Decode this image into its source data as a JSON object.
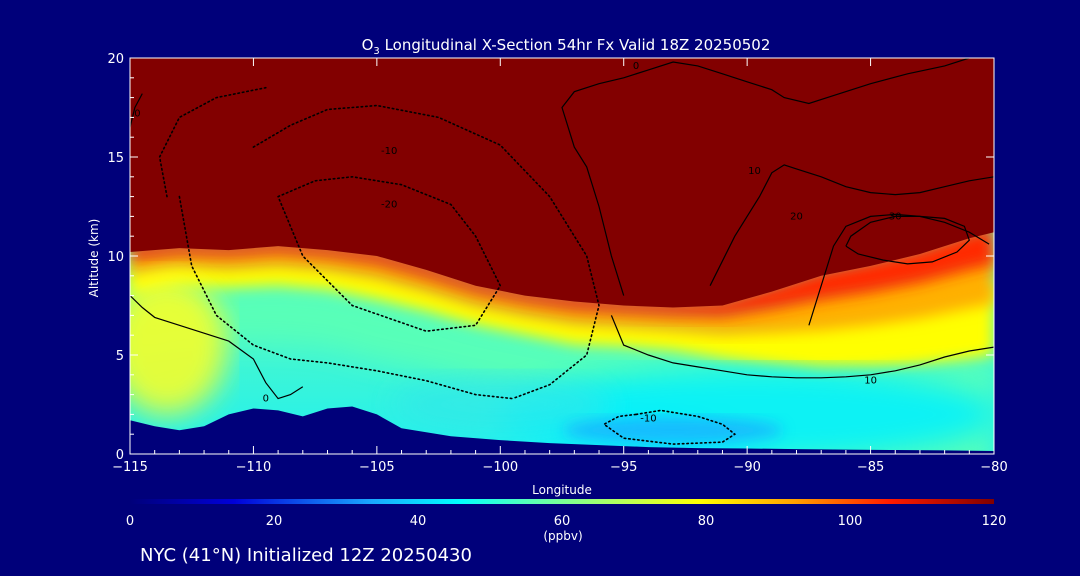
{
  "chart_data": {
    "type": "heatmap",
    "title": "O3 Longitudinal X-Section 54hr  Fx Valid 18Z 20250502",
    "title_parts": {
      "species": "O",
      "subscript": "3",
      "rest": " Longitudinal X-Section 54hr  Fx Valid 18Z 20250502"
    },
    "xlabel": "Longitude",
    "ylabel": "Altitude (km)",
    "xlim": [
      -115,
      -80
    ],
    "ylim": [
      0,
      20
    ],
    "x_ticks": [
      -115,
      -110,
      -105,
      -100,
      -95,
      -90,
      -85,
      -80
    ],
    "x_tick_labels": [
      "−115",
      "−110",
      "−105",
      "−100",
      "−95",
      "−90",
      "−85",
      "−80"
    ],
    "y_ticks": [
      0,
      5,
      10,
      15,
      20
    ],
    "y_tick_labels": [
      "0",
      "5",
      "10",
      "15",
      "20"
    ],
    "colorbar": {
      "label": "(ppbv)",
      "range": [
        0,
        120
      ],
      "ticks": [
        0,
        20,
        40,
        60,
        80,
        100,
        120
      ],
      "tick_labels": [
        "0",
        "20",
        "40",
        "60",
        "80",
        "100",
        "120"
      ]
    },
    "ozone_layer_base": {
      "description_units": "longitude, altitude km",
      "x": [
        -115,
        -113,
        -111,
        -109,
        -107,
        -105,
        -103,
        -101,
        -99,
        -97,
        -95,
        -93,
        -91,
        -89,
        -87,
        -85,
        -83,
        -81,
        -80
      ],
      "top": [
        10.5,
        10.7,
        10.6,
        10.8,
        10.6,
        10.3,
        9.6,
        8.8,
        8.3,
        8.0,
        7.8,
        7.7,
        7.8,
        8.5,
        9.3,
        9.8,
        10.4,
        11.2,
        11.5
      ],
      "bottom": [
        8.0,
        8.5,
        8.4,
        8.5,
        8.3,
        7.8,
        7.2,
        6.5,
        6.0,
        5.5,
        5.4,
        5.2,
        4.8,
        4.5,
        4.2,
        4.3,
        4.5,
        4.8,
        5.0
      ]
    },
    "terrain": {
      "x": [
        -115,
        -114,
        -113,
        -112,
        -111,
        -110,
        -109,
        -108,
        -107,
        -106,
        -105,
        -104,
        -102,
        -100,
        -98,
        -96,
        -94,
        -92,
        -90,
        -88,
        -86,
        -84,
        -82,
        -80
      ],
      "alt": [
        1.7,
        1.4,
        1.2,
        1.4,
        2.0,
        2.3,
        2.2,
        1.9,
        2.3,
        2.4,
        2.0,
        1.3,
        0.9,
        0.7,
        0.55,
        0.45,
        0.35,
        0.3,
        0.28,
        0.25,
        0.22,
        0.2,
        0.18,
        0.15
      ]
    },
    "contours": [
      {
        "value": "10",
        "style": "solid",
        "x": [
          -95.5,
          -95.0,
          -94.0,
          -93.0,
          -92.0,
          -91.0,
          -90.0,
          -89.0,
          -88.0,
          -87.0,
          -86.0,
          -85.0,
          -84.0,
          -83.0,
          -82.0,
          -81.0,
          -80.0
        ],
        "y": [
          7.0,
          5.5,
          5.0,
          4.6,
          4.4,
          4.2,
          4.0,
          3.9,
          3.85,
          3.85,
          3.9,
          4.0,
          4.2,
          4.5,
          4.9,
          5.2,
          5.4
        ],
        "label_at": [
          -85.0,
          3.7
        ]
      },
      {
        "value": "10",
        "style": "solid",
        "x": [
          -91.5,
          -90.5,
          -89.5,
          -89.0,
          -88.5,
          -88.0,
          -87.0,
          -86.0,
          -85.0,
          -84.0,
          -83.0,
          -82.0,
          -81.0,
          -80.0
        ],
        "y": [
          8.5,
          11.0,
          13.0,
          14.2,
          14.6,
          14.4,
          14.0,
          13.5,
          13.2,
          13.1,
          13.2,
          13.5,
          13.8,
          14.0
        ],
        "label_at": [
          -89.7,
          14.3
        ]
      },
      {
        "value": "20",
        "style": "solid",
        "x": [
          -87.5,
          -87.0,
          -86.5,
          -86.0,
          -85.0,
          -84.0,
          -83.0,
          -82.0,
          -81.0,
          -80.2
        ],
        "y": [
          6.5,
          8.5,
          10.5,
          11.5,
          12.0,
          12.1,
          12.0,
          11.7,
          11.2,
          10.6
        ],
        "label_at": [
          -88.0,
          12.0
        ]
      },
      {
        "value": "30",
        "style": "solid",
        "x": [
          -86.0,
          -85.8,
          -85.0,
          -84.0,
          -83.0,
          -82.0,
          -81.2,
          -81.0,
          -81.5,
          -82.5,
          -83.5,
          -84.5,
          -85.5,
          -86.0
        ],
        "y": [
          10.5,
          11.0,
          11.7,
          12.0,
          12.0,
          11.9,
          11.5,
          10.8,
          10.2,
          9.7,
          9.6,
          9.8,
          10.1,
          10.5
        ],
        "label_at": [
          -84.0,
          12.0
        ]
      },
      {
        "value": "0",
        "style": "solid",
        "x": [
          -95.0,
          -95.5,
          -96.0,
          -96.5,
          -97.0,
          -97.5,
          -97.0,
          -96.0,
          -95.0,
          -94.0,
          -93.0,
          -92.0,
          -91.0,
          -90.0,
          -89.0,
          -88.5,
          -87.5,
          -86.5,
          -85.0,
          -83.5,
          -82.0,
          -81.0
        ],
        "y": [
          8.0,
          10.0,
          12.5,
          14.5,
          15.5,
          17.5,
          18.3,
          18.7,
          19.0,
          19.4,
          19.8,
          19.6,
          19.2,
          18.8,
          18.4,
          18.0,
          17.7,
          18.1,
          18.7,
          19.2,
          19.6,
          20.0
        ],
        "label_at": [
          -94.5,
          19.6
        ]
      },
      {
        "value": "0",
        "style": "solid",
        "x": [
          -115.0,
          -114.5,
          -114.0,
          -113.0,
          -112.0,
          -111.0,
          -110.0,
          -109.5,
          -109.0,
          -108.5,
          -108.0
        ],
        "y": [
          8.0,
          7.4,
          6.9,
          6.5,
          6.1,
          5.7,
          4.8,
          3.6,
          2.8,
          3.0,
          3.4
        ],
        "label_at": [
          -109.5,
          2.8
        ]
      },
      {
        "value": "0",
        "style": "solid",
        "x": [
          -115.0,
          -114.8,
          -114.5
        ],
        "y": [
          16.5,
          17.5,
          18.2
        ],
        "label_at": [
          -114.7,
          17.2
        ]
      },
      {
        "value": "-10",
        "style": "dotted",
        "x": [
          -110.0,
          -108.5,
          -107.0,
          -105.0,
          -102.5,
          -100.0,
          -98.0,
          -96.5,
          -96.0,
          -96.5,
          -98.0,
          -99.5
        ],
        "y": [
          15.5,
          16.6,
          17.4,
          17.6,
          17.0,
          15.6,
          13.0,
          10.0,
          7.5,
          5.0,
          3.5,
          2.8
        ],
        "label_at": [
          -104.5,
          15.3
        ]
      },
      {
        "value": "-20",
        "style": "dotted",
        "x": [
          -109.0,
          -107.5,
          -106.0,
          -104.0,
          -102.0,
          -101.0,
          -100.0,
          -101.0,
          -103.0,
          -106.0,
          -108.0,
          -109.0
        ],
        "y": [
          13.0,
          13.8,
          14.0,
          13.6,
          12.6,
          11.0,
          8.5,
          6.5,
          6.2,
          7.5,
          10.0,
          13.0
        ],
        "label_at": [
          -104.5,
          12.6
        ]
      },
      {
        "value": "-10",
        "style": "dotted",
        "x": [
          -94.5,
          -93.5,
          -92.0,
          -91.0,
          -90.5,
          -91.0,
          -93.0,
          -95.0,
          -95.8,
          -95.2,
          -94.5
        ],
        "y": [
          2.0,
          2.2,
          1.9,
          1.5,
          1.0,
          0.6,
          0.5,
          0.8,
          1.5,
          1.9,
          2.0
        ],
        "label_at": [
          -94.0,
          1.8
        ]
      },
      {
        "value": "",
        "style": "dotted",
        "x": [
          -113.0,
          -112.5,
          -111.5,
          -110.0,
          -108.5,
          -107.0,
          -105.0,
          -103.0,
          -101.0,
          -99.5
        ],
        "y": [
          13.0,
          9.5,
          7.0,
          5.5,
          4.8,
          4.6,
          4.2,
          3.7,
          3.0,
          2.8
        ],
        "label_at": null
      },
      {
        "value": "",
        "style": "dotted",
        "x": [
          -113.5,
          -113.8,
          -113.0,
          -111.5,
          -109.5
        ],
        "y": [
          13.0,
          15.0,
          17.0,
          18.0,
          18.5
        ],
        "label_at": null
      }
    ]
  },
  "footer": {
    "caption": "NYC (41°N) Initialized 12Z 20250430"
  }
}
